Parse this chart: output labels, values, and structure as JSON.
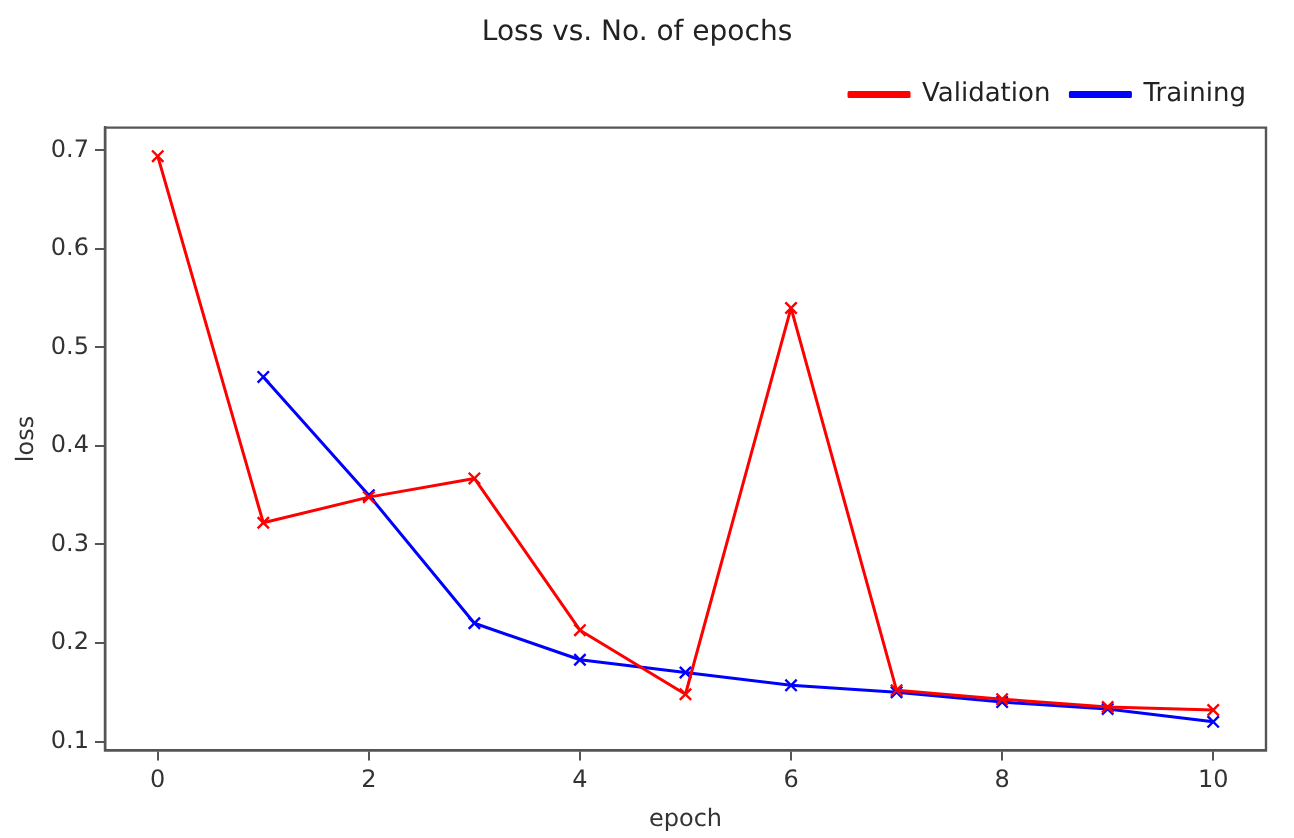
{
  "chart_data": {
    "type": "line",
    "title": "Loss vs. No. of epochs",
    "xlabel": "epoch",
    "ylabel": "loss",
    "xlim": [
      -0.5,
      10.5
    ],
    "xticks": [
      0,
      2,
      4,
      6,
      8,
      10
    ],
    "ylim": [
      0.091,
      0.723
    ],
    "yticks": [
      0.1,
      0.2,
      0.3,
      0.4,
      0.5,
      0.6,
      0.7
    ],
    "grid": false,
    "legend": "top right",
    "marker": "cross",
    "line_style": "solid",
    "series": [
      {
        "name": "Training",
        "color": "#0000ff",
        "x": [
          1,
          2,
          3,
          4,
          5,
          6,
          7,
          8,
          9,
          10
        ],
        "values": [
          0.47,
          0.35,
          0.22,
          0.183,
          0.17,
          0.157,
          0.15,
          0.14,
          0.133,
          0.12
        ]
      },
      {
        "name": "Validation",
        "color": "#ff0000",
        "x": [
          0,
          1,
          2,
          3,
          4,
          5,
          6,
          7,
          8,
          9,
          10
        ],
        "values": [
          0.694,
          0.322,
          0.348,
          0.367,
          0.213,
          0.148,
          0.54,
          0.152,
          0.143,
          0.135,
          0.132
        ]
      }
    ]
  }
}
